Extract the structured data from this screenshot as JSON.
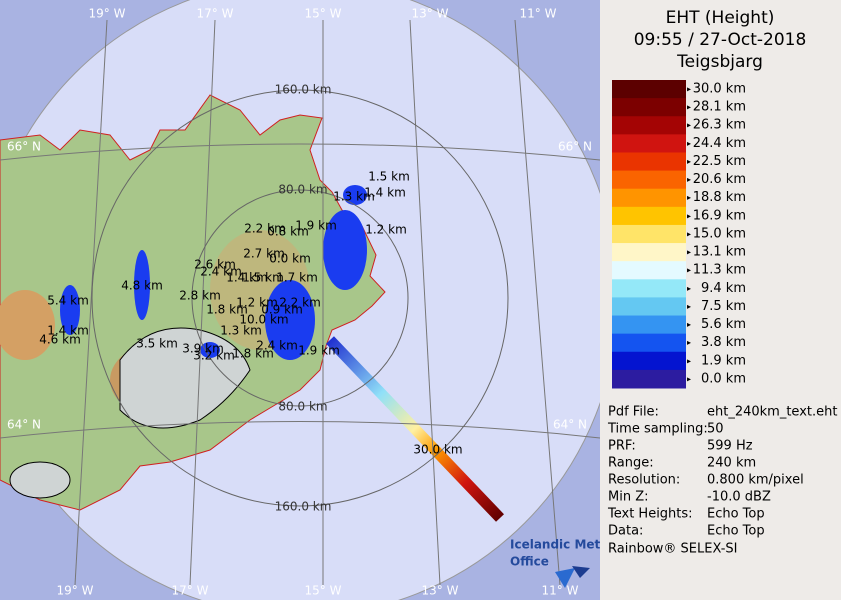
{
  "header": {
    "title": "EHT (Height)",
    "time": "09:55 / 27-Oct-2018",
    "site": "Teigsbjarg"
  },
  "legend": [
    {
      "label": "30.0 km",
      "color": "#5c0000"
    },
    {
      "label": "28.1 km",
      "color": "#7c0000"
    },
    {
      "label": "26.3 km",
      "color": "#a40404"
    },
    {
      "label": "24.4 km",
      "color": "#d01410"
    },
    {
      "label": "22.5 km",
      "color": "#ea3400"
    },
    {
      "label": "20.6 km",
      "color": "#fa6400"
    },
    {
      "label": "18.8 km",
      "color": "#ff9400"
    },
    {
      "label": "16.9 km",
      "color": "#ffc400"
    },
    {
      "label": "15.0 km",
      "color": "#ffe468"
    },
    {
      "label": "13.1 km",
      "color": "#fff6c8"
    },
    {
      "label": "11.3 km",
      "color": "#e4faff"
    },
    {
      "label": "9.4 km",
      "color": "#94e8f8"
    },
    {
      "label": "7.5 km",
      "color": "#64c8f2"
    },
    {
      "label": "5.6 km",
      "color": "#3494f2"
    },
    {
      "label": "3.8 km",
      "color": "#1454f0"
    },
    {
      "label": "1.9 km",
      "color": "#0414d0"
    },
    {
      "label": "0.0 km",
      "color": "#2c1ca0"
    }
  ],
  "info": [
    [
      "Pdf File:",
      "eht_240km_text.eht"
    ],
    [
      "Time sampling:",
      "50"
    ],
    [
      "PRF:",
      "599 Hz"
    ],
    [
      "Range:",
      "240 km"
    ],
    [
      "Resolution:",
      "0.800 km/pixel"
    ],
    [
      "Min Z:",
      "-10.0 dBZ"
    ],
    [
      "Text Heights:",
      "Echo Top"
    ],
    [
      "Data:",
      "Echo Top"
    ]
  ],
  "footer": "Rainbow® SELEX-SI",
  "map": {
    "longitudes_top": [
      "19° W",
      "17° W",
      "15° W",
      "13° W",
      "11° W"
    ],
    "longitudes_bottom": [
      "19° W",
      "17° W",
      "15° W",
      "13° W",
      "11° W"
    ],
    "latitudes": [
      "66° N",
      "64° N"
    ],
    "range_rings": [
      "80.0 km",
      "160.0 km"
    ],
    "heights": [
      "1.5 km",
      "1.4 km",
      "1.3 km",
      "1.2 km",
      "1.9 km",
      "2.2 km",
      "0.8 km",
      "2.7 km",
      "0.0 km",
      "2.6 km",
      "2.4 km",
      "1.4 km",
      "1.5 km",
      "1.7 km",
      "2.8 km",
      "4.8 km",
      "5.4 km",
      "1.4 km",
      "4.6 km",
      "1.2 km",
      "2.2 km",
      "1.8 km",
      "0.9 km",
      "10.0 km",
      "1.3 km",
      "3.5 km",
      "3.9 km",
      "3.2 km",
      "1.8 km",
      "2.4 km",
      "1.9 km",
      "30.0 km"
    ],
    "logo": [
      "Icelandic Met",
      "Office"
    ]
  }
}
